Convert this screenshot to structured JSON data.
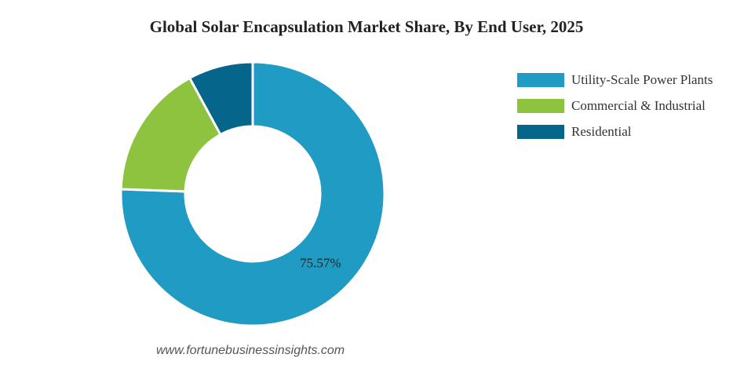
{
  "chart_data": {
    "type": "pie",
    "title": "Global Solar Encapsulation Market Share, By End User, 2025",
    "categories": [
      "Utility-Scale Power Plants",
      "Commercial & Industrial",
      "Residential"
    ],
    "values": [
      75.57,
      16.5,
      7.93
    ],
    "colors": [
      "#1f9bc4",
      "#8dc33f",
      "#06658a"
    ],
    "data_labels": [
      "75.57%",
      "",
      ""
    ],
    "donut": true,
    "legend_position": "right"
  },
  "watermark": "www.fortunebusinessinsights.com"
}
